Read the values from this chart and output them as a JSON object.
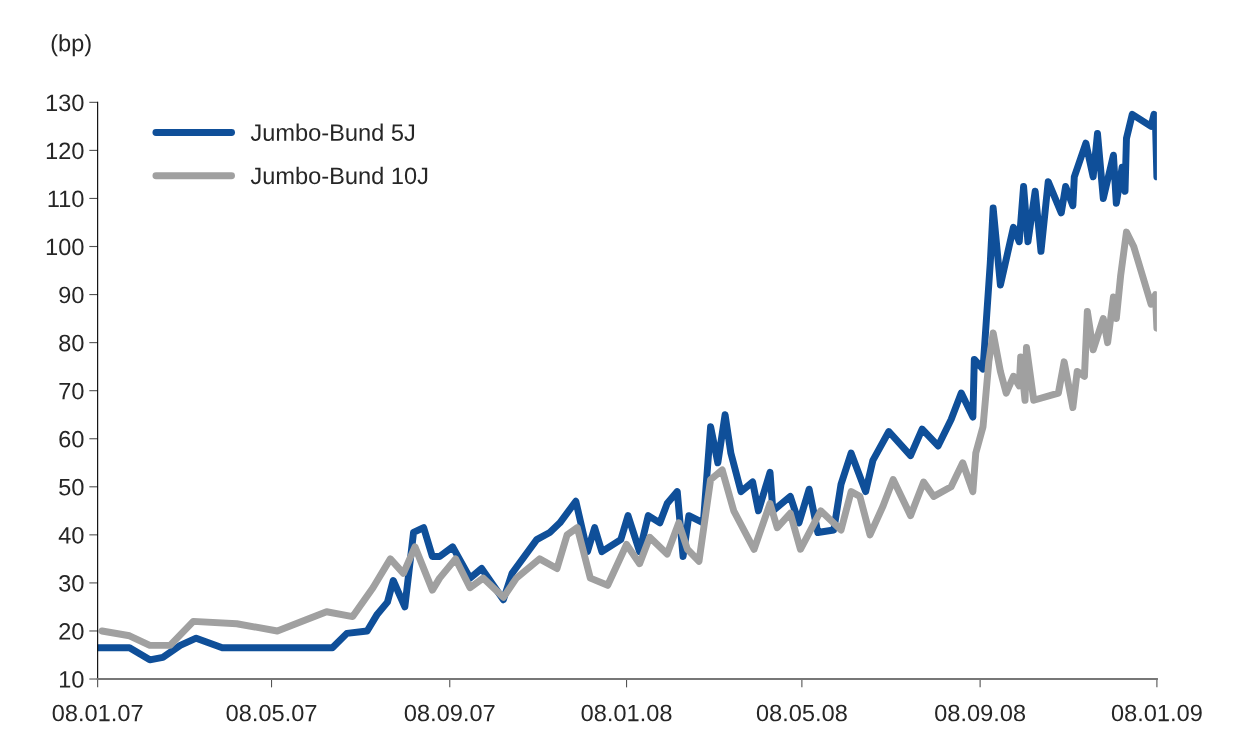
{
  "chart_data": {
    "type": "line",
    "ylabel": "(bp)",
    "ylim": [
      10,
      130
    ],
    "yticks": [
      10,
      20,
      30,
      40,
      50,
      60,
      70,
      80,
      90,
      100,
      110,
      120,
      130
    ],
    "xlim": [
      "2007-01-08",
      "2009-01-08"
    ],
    "xticks": [
      {
        "value": "2007-01-08",
        "label": "08.01.07"
      },
      {
        "value": "2007-05-08",
        "label": "08.05.07"
      },
      {
        "value": "2007-09-08",
        "label": "08.09.07"
      },
      {
        "value": "2008-01-08",
        "label": "08.01.08"
      },
      {
        "value": "2008-05-08",
        "label": "08.05.08"
      },
      {
        "value": "2008-09-08",
        "label": "08.09.08"
      },
      {
        "value": "2009-01-08",
        "label": "08.01.09"
      }
    ],
    "grid": false,
    "legend": "top left",
    "marker": "none",
    "line_style": "solid",
    "series": [
      {
        "name": "Jumbo-Bund 5J",
        "color": "#0f4f99",
        "x": [
          "2007-01-08",
          "2007-01-30",
          "2007-02-13",
          "2007-02-22",
          "2007-03-06",
          "2007-03-17",
          "2007-04-04",
          "2007-05-02",
          "2007-06-03",
          "2007-06-19",
          "2007-06-29",
          "2007-07-13",
          "2007-07-20",
          "2007-07-27",
          "2007-07-31",
          "2007-08-08",
          "2007-08-14",
          "2007-08-21",
          "2007-08-27",
          "2007-09-01",
          "2007-09-10",
          "2007-09-22",
          "2007-09-30",
          "2007-10-15",
          "2007-10-21",
          "2007-11-07",
          "2007-11-16",
          "2007-11-23",
          "2007-12-04",
          "2007-12-12",
          "2007-12-17",
          "2007-12-22",
          "2008-01-04",
          "2008-01-09",
          "2008-01-17",
          "2008-01-23",
          "2008-01-31",
          "2008-02-05",
          "2008-02-12",
          "2008-02-16",
          "2008-02-20",
          "2008-03-01",
          "2008-03-06",
          "2008-03-11",
          "2008-03-16",
          "2008-03-20",
          "2008-03-27",
          "2008-04-04",
          "2008-04-08",
          "2008-04-16",
          "2008-04-18",
          "2008-04-30",
          "2008-05-06",
          "2008-05-13",
          "2008-05-19",
          "2008-05-30",
          "2008-06-04",
          "2008-06-11",
          "2008-06-21",
          "2008-06-26",
          "2008-07-07",
          "2008-07-22",
          "2008-07-30",
          "2008-08-10",
          "2008-08-19",
          "2008-08-26",
          "2008-09-03",
          "2008-09-04",
          "2008-09-10",
          "2008-09-15",
          "2008-09-17",
          "2008-09-22",
          "2008-10-01",
          "2008-10-05",
          "2008-10-08",
          "2008-10-11",
          "2008-10-16",
          "2008-10-20",
          "2008-10-25",
          "2008-11-03",
          "2008-11-06",
          "2008-11-11",
          "2008-11-12",
          "2008-11-20",
          "2008-11-25",
          "2008-11-28",
          "2008-12-02",
          "2008-12-09",
          "2008-12-11",
          "2008-12-15",
          "2008-12-17",
          "2008-12-18",
          "2008-12-22",
          "2009-01-04",
          "2009-01-06",
          "2009-01-07",
          "2009-01-08"
        ],
        "values": [
          16.5,
          16.5,
          14,
          14.5,
          17,
          18.5,
          16.5,
          16.5,
          16.5,
          16.5,
          19.5,
          20,
          23.5,
          26,
          30.5,
          25,
          40.5,
          41.5,
          35.5,
          35.5,
          37.5,
          31,
          33,
          26.5,
          32,
          39,
          40.5,
          42.5,
          47,
          36.5,
          41.5,
          36.5,
          39,
          44,
          36.5,
          44,
          42.5,
          46.5,
          49,
          35.5,
          44,
          42.5,
          62.5,
          55,
          65,
          57,
          49,
          51,
          45,
          53,
          45,
          48,
          42.5,
          49.5,
          40.5,
          41,
          50.5,
          57,
          49,
          55.5,
          61.5,
          56.5,
          62,
          58.5,
          64,
          69.5,
          64.5,
          76.5,
          74.5,
          96.5,
          108,
          92,
          104,
          101,
          112.5,
          101,
          111.5,
          99,
          113.5,
          107,
          112.5,
          108.5,
          114.5,
          121.5,
          114.5,
          123.5,
          110,
          119,
          109,
          116.5,
          111.5,
          122.5,
          127.5,
          125,
          127.5,
          126,
          114.5
        ]
      },
      {
        "name": "Jumbo-Bund 10J",
        "color": "#a0a0a0",
        "x": [
          "2007-01-11",
          "2007-01-30",
          "2007-02-13",
          "2007-02-27",
          "2007-03-15",
          "2007-04-14",
          "2007-05-12",
          "2007-06-15",
          "2007-07-03",
          "2007-07-17",
          "2007-07-29",
          "2007-08-07",
          "2007-08-15",
          "2007-08-27",
          "2007-09-01",
          "2007-09-12",
          "2007-09-22",
          "2007-10-01",
          "2007-10-15",
          "2007-10-24",
          "2007-11-09",
          "2007-11-21",
          "2007-11-28",
          "2007-12-05",
          "2007-12-14",
          "2007-12-26",
          "2008-01-08",
          "2008-01-17",
          "2008-01-24",
          "2008-02-05",
          "2008-02-13",
          "2008-02-19",
          "2008-02-27",
          "2008-03-06",
          "2008-03-14",
          "2008-03-22",
          "2008-04-05",
          "2008-04-16",
          "2008-04-21",
          "2008-04-30",
          "2008-05-07",
          "2008-05-14",
          "2008-05-21",
          "2008-06-04",
          "2008-06-11",
          "2008-06-17",
          "2008-06-24",
          "2008-07-03",
          "2008-07-10",
          "2008-07-22",
          "2008-07-31",
          "2008-08-07",
          "2008-08-19",
          "2008-08-27",
          "2008-09-03",
          "2008-09-05",
          "2008-09-10",
          "2008-09-14",
          "2008-09-17",
          "2008-09-22",
          "2008-09-26",
          "2008-10-01",
          "2008-10-05",
          "2008-10-06",
          "2008-10-09",
          "2008-10-10",
          "2008-10-15",
          "2008-11-01",
          "2008-11-05",
          "2008-11-11",
          "2008-11-14",
          "2008-11-19",
          "2008-11-21",
          "2008-11-25",
          "2008-12-02",
          "2008-12-05",
          "2008-12-09",
          "2008-12-11",
          "2008-12-14",
          "2008-12-18",
          "2008-12-23",
          "2009-01-04",
          "2009-01-07",
          "2009-01-08"
        ],
        "values": [
          20,
          19,
          17,
          17,
          22,
          21.5,
          20,
          24,
          23,
          29,
          35,
          32,
          37.5,
          28.5,
          31,
          35,
          29,
          31,
          27,
          31,
          35,
          33,
          40,
          41.5,
          31,
          29.5,
          38,
          34,
          39.5,
          36,
          42.5,
          37,
          34.5,
          51.5,
          53.5,
          45,
          37,
          46.5,
          41.5,
          44.5,
          37,
          41,
          45,
          41,
          49,
          48,
          40,
          46,
          51.5,
          44,
          51,
          48,
          50,
          55,
          49,
          57,
          62.5,
          76,
          82,
          74,
          69.5,
          73,
          71,
          77,
          68,
          79,
          68,
          69.5,
          76,
          66.5,
          74,
          73,
          86.5,
          78.5,
          85,
          80,
          89.5,
          85,
          94,
          103,
          100,
          88,
          90,
          83
        ]
      }
    ]
  }
}
